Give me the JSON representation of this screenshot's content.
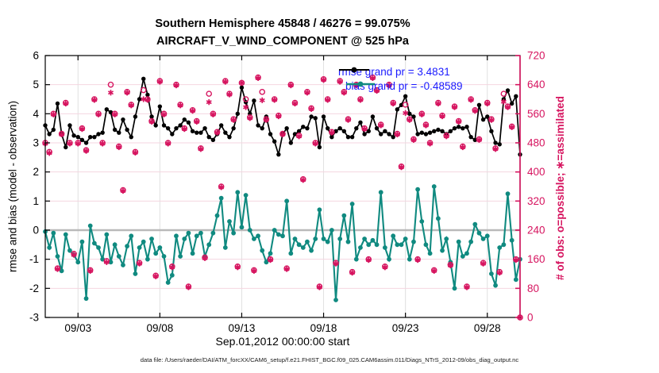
{
  "header": {
    "title_line1": "Southern Hemisphere 45848 / 46276 = 99.075%",
    "title_line2": "AIRCRAFT_V_WIND_COMPONENT @ 525 hPa"
  },
  "legend": {
    "rmse_label": "rmse grand pr = 3.4831",
    "bias_label": "bias grand pr = -0.48589"
  },
  "axes": {
    "left_label": "rmse and bias (model - observation)",
    "right_label": "# of obs: o=possible; ∗=assimilated",
    "x_label": "Sep.01,2012 00:00:00 start",
    "x_ticks": [
      {
        "label": "09/03",
        "day": 2
      },
      {
        "label": "09/08",
        "day": 7
      },
      {
        "label": "09/13",
        "day": 12
      },
      {
        "label": "09/18",
        "day": 17
      },
      {
        "label": "09/23",
        "day": 22
      },
      {
        "label": "09/28",
        "day": 27
      }
    ],
    "left_ticks": [
      -3,
      -2,
      -1,
      0,
      1,
      2,
      3,
      4,
      5,
      6
    ],
    "right_ticks": [
      0,
      80,
      160,
      240,
      320,
      400,
      480,
      560,
      640,
      720
    ]
  },
  "footer": {
    "data_file": "data file: /Users/raeder/DAI/ATM_forcXX/CAM6_setup/f.e21.FHIST_BGC.f09_025.CAM6assim.011/Diags_NTrS_2012-09/obs_diag_output.nc"
  },
  "colors": {
    "rmse": "#000000",
    "bias": "#108A80",
    "obs": "#D6145F",
    "legend_text": "#1A1AFF",
    "zero_line": "#B9B9B9",
    "hgrid": "#F4D6E0",
    "vgrid": "#E0E0E0",
    "frame": "#000000"
  },
  "chart_data": {
    "type": "line",
    "title": "Southern Hemisphere 45848 / 46276 = 99.075%",
    "subtitle": "AIRCRAFT_V_WIND_COMPONENT @ 525 hPa",
    "x_unit": "days since Sep.01,2012 00:00:00",
    "start_day": 0,
    "step_days": 0.25,
    "x_max": 29,
    "ylim_left": [
      -3,
      6
    ],
    "ylim_right": [
      0,
      720
    ],
    "grid": true,
    "legend_position": "top-right-inside",
    "rmse_grand_pr": 3.4831,
    "bias_grand_pr": -0.48589,
    "obs_possible_total": 46276,
    "obs_assimilated_total": 45848,
    "obs_assimilated_pct": 99.075,
    "series": [
      {
        "name": "rmse",
        "axis": "left",
        "marker": "filled-circle",
        "values": [
          3.6,
          3.3,
          3.45,
          4.35,
          3.3,
          2.85,
          3.6,
          3.25,
          3.2,
          3.1,
          3.0,
          3.2,
          3.2,
          3.3,
          3.35,
          4.15,
          4.05,
          3.45,
          3.35,
          3.8,
          3.45,
          3.2,
          3.9,
          4.5,
          5.2,
          4.65,
          3.9,
          3.6,
          4.25,
          3.6,
          3.5,
          3.3,
          3.5,
          3.6,
          3.8,
          3.7,
          3.4,
          3.35,
          3.35,
          3.5,
          3.2,
          3.1,
          3.3,
          3.6,
          3.35,
          3.2,
          3.5,
          4.0,
          4.9,
          4.4,
          4.0,
          4.45,
          3.6,
          3.5,
          3.9,
          3.3,
          3.05,
          2.6,
          3.3,
          3.5,
          3.0,
          3.3,
          3.4,
          3.55,
          3.5,
          3.9,
          3.85,
          2.85,
          3.9,
          3.5,
          3.2,
          3.4,
          3.5,
          3.4,
          3.2,
          3.2,
          3.5,
          3.7,
          3.3,
          3.4,
          3.9,
          3.5,
          3.3,
          3.4,
          3.3,
          3.2,
          4.15,
          4.3,
          4.6,
          4.0,
          3.9,
          3.3,
          3.35,
          3.3,
          3.35,
          3.4,
          3.45,
          3.4,
          3.3,
          3.4,
          3.5,
          3.55,
          3.5,
          3.55,
          3.2,
          3.1,
          4.3,
          3.8,
          3.9,
          3.4,
          3.0,
          2.95,
          4.5,
          4.8,
          4.35,
          4.6,
          2.6
        ]
      },
      {
        "name": "bias",
        "axis": "left",
        "marker": "filled-circle",
        "values": [
          -0.05,
          -0.6,
          -0.1,
          -0.9,
          -1.4,
          -0.15,
          -0.7,
          -0.85,
          -1.1,
          -0.4,
          -2.35,
          0.15,
          -0.45,
          -0.6,
          -1.0,
          -0.15,
          -1.1,
          -0.5,
          -0.9,
          -1.2,
          -0.55,
          -0.2,
          -1.5,
          -0.6,
          -0.4,
          -1.0,
          -0.3,
          -0.8,
          -0.6,
          -0.9,
          -1.8,
          -1.55,
          -0.2,
          -0.9,
          -0.3,
          -0.1,
          -0.8,
          -0.2,
          -0.1,
          -0.9,
          -0.5,
          -0.1,
          0.5,
          1.1,
          -0.6,
          0.3,
          -0.1,
          1.3,
          0.1,
          1.2,
          0.0,
          -0.3,
          -0.2,
          -0.7,
          -1.1,
          -0.8,
          0.0,
          -0.15,
          -0.2,
          1.0,
          -0.8,
          -0.3,
          -0.5,
          -0.6,
          -0.4,
          -0.7,
          -0.3,
          0.7,
          -0.3,
          -0.4,
          0.0,
          -2.4,
          -0.3,
          0.5,
          -0.4,
          0.9,
          -1.0,
          -0.6,
          -0.3,
          -0.5,
          -0.35,
          -0.5,
          1.3,
          -0.6,
          -1.0,
          -0.2,
          -0.5,
          -0.5,
          -0.3,
          -1.0,
          -0.4,
          1.4,
          0.3,
          -0.5,
          -0.8,
          1.5,
          0.4,
          -0.7,
          -0.3,
          -1.1,
          -2.0,
          -0.4,
          -0.9,
          -0.8,
          -0.4,
          0.2,
          -0.1,
          -0.3,
          -0.2,
          -1.5,
          -1.9,
          -0.6,
          -0.5,
          1.25,
          -0.35,
          -1.7,
          -1.0
        ]
      },
      {
        "name": "possible",
        "axis": "right",
        "marker": "open-circle",
        "values": [
          480,
          455,
          560,
          135,
          505,
          590,
          480,
          175,
          480,
          520,
          460,
          130,
          600,
          560,
          480,
          155,
          640,
          560,
          470,
          350,
          620,
          585,
          455,
          150,
          625,
          600,
          540,
          115,
          650,
          560,
          480,
          140,
          640,
          585,
          520,
          85,
          570,
          540,
          465,
          165,
          615,
          560,
          510,
          360,
          650,
          615,
          545,
          140,
          645,
          600,
          550,
          130,
          660,
          620,
          545,
          160,
          600,
          555,
          505,
          135,
          640,
          590,
          500,
          380,
          620,
          575,
          480,
          85,
          655,
          600,
          510,
          150,
          650,
          620,
          545,
          125,
          640,
          600,
          520,
          160,
          660,
          625,
          530,
          140,
          640,
          590,
          505,
          415,
          585,
          545,
          490,
          160,
          560,
          530,
          480,
          130,
          590,
          555,
          500,
          145,
          580,
          540,
          470,
          85,
          600,
          570,
          490,
          150,
          590,
          545,
          465,
          125,
          615,
          580,
          525,
          160,
          0
        ]
      },
      {
        "name": "assimilated",
        "axis": "right",
        "marker": "asterisk",
        "values": [
          478,
          452,
          558,
          133,
          503,
          588,
          478,
          172,
          478,
          518,
          458,
          128,
          598,
          558,
          478,
          152,
          618,
          558,
          468,
          348,
          618,
          583,
          453,
          148,
          600,
          598,
          538,
          113,
          648,
          558,
          478,
          138,
          638,
          583,
          518,
          83,
          568,
          538,
          463,
          163,
          592,
          558,
          508,
          358,
          648,
          613,
          543,
          138,
          645,
          578,
          548,
          128,
          658,
          597,
          543,
          158,
          598,
          553,
          503,
          133,
          638,
          588,
          498,
          378,
          618,
          573,
          478,
          83,
          653,
          598,
          508,
          148,
          648,
          618,
          543,
          123,
          638,
          598,
          518,
          158,
          658,
          623,
          528,
          138,
          638,
          588,
          503,
          413,
          562,
          543,
          488,
          158,
          558,
          528,
          478,
          128,
          588,
          553,
          498,
          143,
          578,
          538,
          468,
          83,
          598,
          568,
          488,
          148,
          588,
          543,
          463,
          123,
          593,
          578,
          523,
          158,
          0
        ]
      }
    ]
  }
}
